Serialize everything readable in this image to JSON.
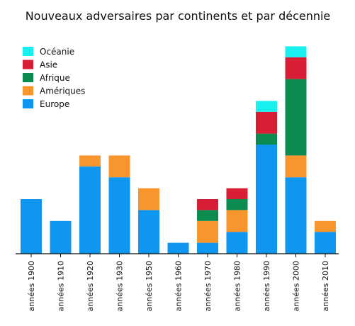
{
  "chart_data": {
    "type": "bar",
    "stacked": true,
    "title": "Nouveaux adversaires par continents et par décennie",
    "xlabel": "",
    "ylabel": "",
    "ylim": [
      0,
      19
    ],
    "grid": false,
    "legend_position": "top-left",
    "categories": [
      "années 1900",
      "années 1910",
      "années 1920",
      "années 1930",
      "années 1950",
      "années 1960",
      "années 1970",
      "années 1980",
      "années 1990",
      "années 2000",
      "années 2010"
    ],
    "series": [
      {
        "name": "Europe",
        "color": "#0f96f0",
        "values": [
          5,
          3,
          8,
          7,
          4,
          1,
          1,
          2,
          10,
          7,
          2
        ]
      },
      {
        "name": "Amériques",
        "color": "#f9952d",
        "values": [
          0,
          0,
          1,
          2,
          2,
          0,
          2,
          2,
          0,
          2,
          1
        ]
      },
      {
        "name": "Afrique",
        "color": "#0b8b4f",
        "values": [
          0,
          0,
          0,
          0,
          0,
          0,
          1,
          1,
          1,
          7,
          0
        ]
      },
      {
        "name": "Asie",
        "color": "#d81e35",
        "values": [
          0,
          0,
          0,
          0,
          0,
          0,
          1,
          1,
          2,
          2,
          0
        ]
      },
      {
        "name": "Océanie",
        "color": "#18f0ef",
        "values": [
          0,
          0,
          0,
          0,
          0,
          0,
          0,
          0,
          1,
          1,
          0
        ]
      }
    ],
    "legend_order": [
      "Océanie",
      "Asie",
      "Afrique",
      "Amériques",
      "Europe"
    ]
  }
}
